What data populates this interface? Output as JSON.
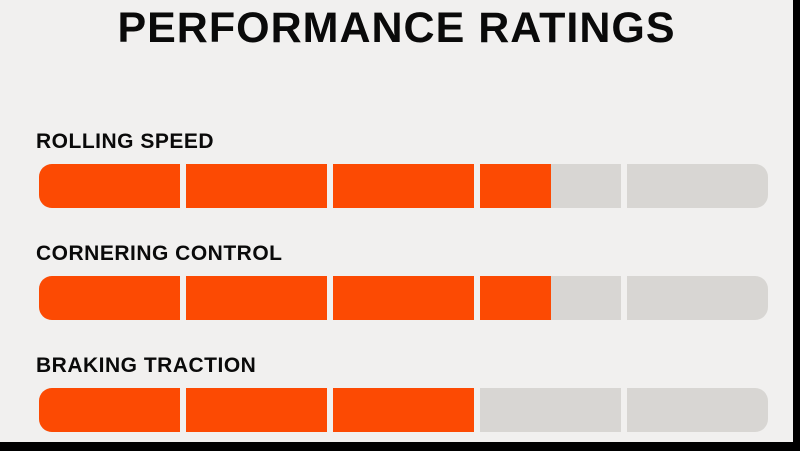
{
  "page": {
    "background_color": "#F1F0EF",
    "frame_color": "#000000"
  },
  "title": "PERFORMANCE RATINGS",
  "ratings": [
    {
      "label": "ROLLING SPEED",
      "value": 3.5,
      "max": 5
    },
    {
      "label": "CORNERING CONTROL",
      "value": 3.5,
      "max": 5
    },
    {
      "label": "BRAKING TRACTION",
      "value": 3,
      "max": 5
    }
  ],
  "chart_data": {
    "type": "bar",
    "title": "PERFORMANCE RATINGS",
    "categories": [
      "ROLLING SPEED",
      "CORNERING CONTROL",
      "BRAKING TRACTION"
    ],
    "values": [
      3.5,
      3.5,
      3
    ],
    "xlabel": "",
    "ylabel": "",
    "xlim": [
      0,
      5
    ],
    "segments_per_bar": 5,
    "orientation": "horizontal",
    "grid": false,
    "legend": false,
    "fill_color": "#FC4A03",
    "empty_color": "#D8D6D3"
  }
}
